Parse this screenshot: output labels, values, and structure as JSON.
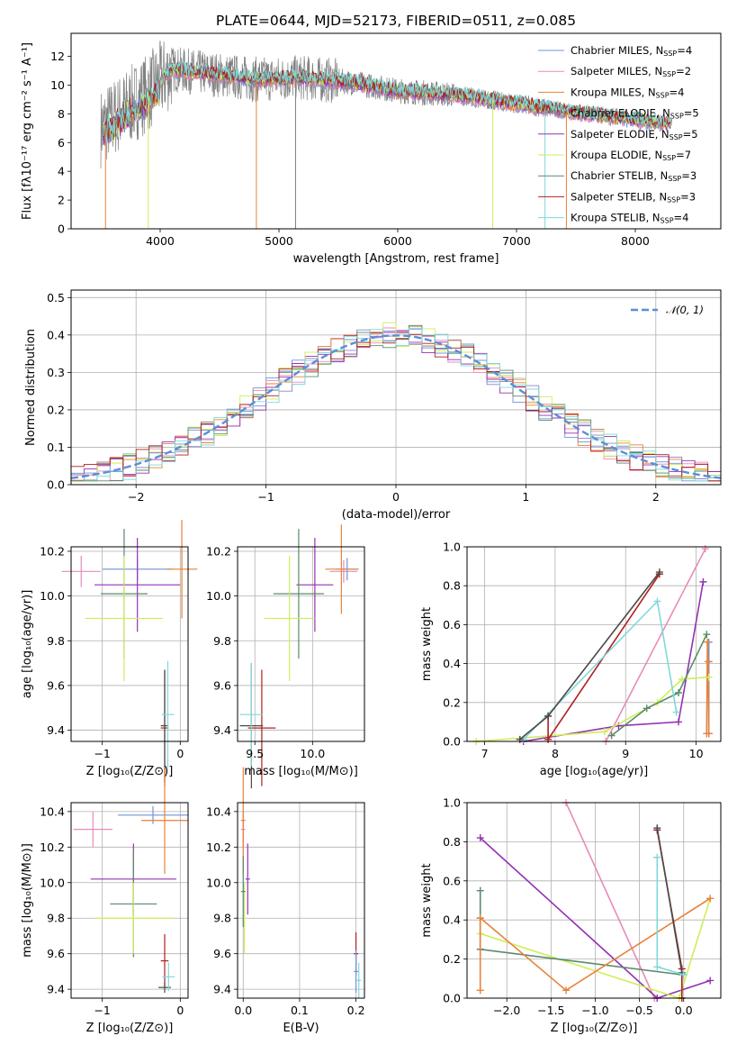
{
  "title": "PLATE=0644, MJD=52173, FIBERID=0511, z=0.085",
  "colors": {
    "chabrier_miles": "#6f94d9",
    "salpeter_miles": "#e88bb8",
    "kroupa_miles": "#e8813a",
    "chabrier_elodie": "#8a84c7",
    "salpeter_elodie": "#9432b2",
    "kroupa_elodie": "#cdee5a",
    "chabrier_stelib": "#5a8a6a",
    "salpeter_stelib": "#b21e1e",
    "kroupa_stelib": "#7fd8db",
    "normal": "#5b8dd9",
    "data": "#808080"
  },
  "chart_data": [
    {
      "id": "spectrum",
      "type": "line",
      "xlabel": "wavelength [Angstrom, rest frame]",
      "ylabel": "Flux [fλ10⁻¹⁷ erg cm⁻² s⁻¹ A⁻¹]",
      "xlim": [
        3250,
        8720
      ],
      "ylim": [
        0,
        13.6
      ],
      "xticks": [
        "4000",
        "5000",
        "6000",
        "7000",
        "8000"
      ],
      "yticks": [
        "0",
        "2",
        "4",
        "6",
        "8",
        "10",
        "12"
      ],
      "legend_position": "top-right",
      "data_envelope": {
        "x": [
          3500,
          3700,
          3900,
          4100,
          4400,
          4800,
          5200,
          5600,
          6000,
          6500,
          7000,
          7500,
          8000,
          8300
        ],
        "y": [
          7.0,
          8.3,
          9.5,
          11.1,
          10.8,
          10.4,
          10.5,
          10.2,
          9.6,
          9.3,
          8.7,
          8.1,
          7.6,
          7.3
        ]
      },
      "series": [
        {
          "name": "Chabrier MILES, N",
          "sub": "SSP",
          "tail": "=4"
        },
        {
          "name": "Salpeter MILES, N",
          "sub": "SSP",
          "tail": "=2"
        },
        {
          "name": "Kroupa MILES, N",
          "sub": "SSP",
          "tail": "=4"
        },
        {
          "name": "Chabrier ELODIE, N",
          "sub": "SSP",
          "tail": "=5"
        },
        {
          "name": "Salpeter ELODIE, N",
          "sub": "SSP",
          "tail": "=5"
        },
        {
          "name": "Kroupa ELODIE, N",
          "sub": "SSP",
          "tail": "=7"
        },
        {
          "name": "Chabrier STELIB, N",
          "sub": "SSP",
          "tail": "=3"
        },
        {
          "name": "Salpeter STELIB, N",
          "sub": "SSP",
          "tail": "=3"
        },
        {
          "name": "Kroupa STELIB, N",
          "sub": "SSP",
          "tail": "=4"
        }
      ]
    },
    {
      "id": "residuals",
      "type": "line",
      "xlabel": "(data-model)/error",
      "ylabel": "Normed distribution",
      "xlim": [
        -2.5,
        2.5
      ],
      "ylim": [
        0,
        0.52
      ],
      "xticks": [
        "−2",
        "−1",
        "0",
        "1",
        "2"
      ],
      "yticks": [
        "0.0",
        "0.1",
        "0.2",
        "0.3",
        "0.4",
        "0.5"
      ],
      "legend": "𝒩(0, 1)",
      "legend_position": "top-right",
      "grid": true
    },
    {
      "id": "age_vs_Z",
      "type": "scatter",
      "xlabel": "Z [log₁₀(Z/Z⊙)]",
      "ylabel": "age  [log₁₀(age/yr)]",
      "xlim": [
        -1.4,
        0.1
      ],
      "ylim": [
        9.35,
        10.22
      ],
      "xticks": [
        "−1",
        "0"
      ],
      "yticks": [
        "9.4",
        "9.6",
        "9.8",
        "10.0",
        "10.2"
      ],
      "grid": true
    },
    {
      "id": "age_vs_mass",
      "type": "scatter",
      "xlabel": "mass [log₁₀(M/M⊙)]",
      "xlim": [
        9.35,
        10.45
      ],
      "ylim": [
        9.35,
        10.22
      ],
      "xticks": [
        "9.5",
        "10.0"
      ],
      "yticks": [
        "9.4",
        "9.6",
        "9.8",
        "10.0",
        "10.2"
      ],
      "grid": true
    },
    {
      "id": "weight_vs_age",
      "type": "line",
      "xlabel": "age  [log₁₀(age/yr)]",
      "ylabel": "mass weight",
      "xlim": [
        6.75,
        10.35
      ],
      "ylim": [
        0,
        1.0
      ],
      "xticks": [
        "7",
        "8",
        "9",
        "10"
      ],
      "yticks": [
        "0.0",
        "0.2",
        "0.4",
        "0.6",
        "0.8",
        "1.0"
      ],
      "grid": true,
      "series": [
        {
          "key": "chabrier_miles",
          "x": [
            10.18,
            10.18,
            10.18,
            10.18
          ],
          "y": [
            0.04,
            0.51,
            0.41,
            0.04
          ]
        },
        {
          "key": "salpeter_miles",
          "x": [
            8.72,
            10.13
          ],
          "y": [
            0.0,
            0.99
          ]
        },
        {
          "key": "kroupa_miles",
          "x": [
            10.15,
            10.16,
            10.17,
            10.18
          ],
          "y": [
            0.04,
            0.51,
            0.41,
            0.04
          ]
        },
        {
          "key": "salpeter_elodie",
          "x": [
            7.55,
            8.9,
            9.75,
            10.1
          ],
          "y": [
            0.0,
            0.08,
            0.1,
            0.82
          ]
        },
        {
          "key": "kroupa_elodie",
          "x": [
            6.88,
            8.7,
            9.45,
            9.8,
            10.18
          ],
          "y": [
            0.0,
            0.05,
            0.2,
            0.32,
            0.33
          ]
        },
        {
          "key": "chabrier_stelib",
          "x": [
            8.8,
            9.3,
            9.75,
            10.15
          ],
          "y": [
            0.03,
            0.17,
            0.25,
            0.55
          ]
        },
        {
          "key": "salpeter_stelib",
          "x": [
            7.9,
            7.9,
            9.48
          ],
          "y": [
            0.13,
            0.01,
            0.86
          ]
        },
        {
          "key": "kroupa_stelib",
          "x": [
            7.55,
            9.45,
            9.72
          ],
          "y": [
            0.01,
            0.72,
            0.15
          ]
        },
        {
          "key": "dark",
          "x": [
            7.5,
            7.9,
            9.48
          ],
          "y": [
            0.01,
            0.13,
            0.87
          ]
        }
      ]
    },
    {
      "id": "mass_vs_Z",
      "type": "scatter",
      "xlabel": "Z [log₁₀(Z/Z⊙)]",
      "ylabel": "mass [log₁₀(M/M⊙)]",
      "xlim": [
        -1.4,
        0.1
      ],
      "ylim": [
        9.35,
        10.45
      ],
      "xticks": [
        "−1",
        "0"
      ],
      "yticks": [
        "9.4",
        "9.6",
        "9.8",
        "10.0",
        "10.2",
        "10.4"
      ],
      "grid": true
    },
    {
      "id": "mass_vs_ebv",
      "type": "scatter",
      "xlabel": "E(B-V)",
      "xlim": [
        -0.01,
        0.215
      ],
      "ylim": [
        9.35,
        10.45
      ],
      "xticks": [
        "0.0",
        "0.1",
        "0.2"
      ],
      "yticks": [
        "9.4",
        "9.6",
        "9.8",
        "10.0",
        "10.2",
        "10.4"
      ],
      "grid": true
    },
    {
      "id": "weight_vs_Z",
      "type": "line",
      "xlabel": "Z [log₁₀(Z/Z⊙)]",
      "ylabel": "mass weight",
      "xlim": [
        -2.45,
        0.42
      ],
      "ylim": [
        0,
        1.0
      ],
      "xticks": [
        "−2.0",
        "−1.5",
        "−1.0",
        "−0.5",
        "0.0"
      ],
      "yticks": [
        "0.0",
        "0.2",
        "0.4",
        "0.6",
        "0.8",
        "1.0"
      ],
      "grid": true,
      "series": [
        {
          "key": "salpeter_miles",
          "x": [
            -1.33,
            -0.33
          ],
          "y": [
            1.0,
            0.0
          ]
        },
        {
          "key": "salpeter_elodie",
          "x": [
            -2.3,
            -0.3,
            0.3
          ],
          "y": [
            0.82,
            0.0,
            0.09
          ]
        },
        {
          "key": "kroupa_elodie",
          "x": [
            -2.3,
            -0.05,
            0.3
          ],
          "y": [
            0.33,
            0.0,
            0.51
          ]
        },
        {
          "key": "chabrier_stelib",
          "x": [
            -2.3,
            -2.3,
            -2.3,
            -0.02
          ],
          "y": [
            0.55,
            0.41,
            0.25,
            0.12
          ]
        },
        {
          "key": "kroupa_miles",
          "x": [
            -2.3,
            -2.3,
            -1.33,
            0.3
          ],
          "y": [
            0.04,
            0.41,
            0.04,
            0.51
          ]
        },
        {
          "key": "salpeter_stelib",
          "x": [
            -0.3,
            -0.02,
            -0.02
          ],
          "y": [
            0.86,
            0.15,
            0.0
          ]
        },
        {
          "key": "dark",
          "x": [
            -0.3,
            -0.02
          ],
          "y": [
            0.87,
            0.13
          ]
        },
        {
          "key": "kroupa_stelib",
          "x": [
            -0.3,
            -0.3,
            0.0
          ],
          "y": [
            0.72,
            0.16,
            0.12
          ]
        }
      ]
    }
  ]
}
